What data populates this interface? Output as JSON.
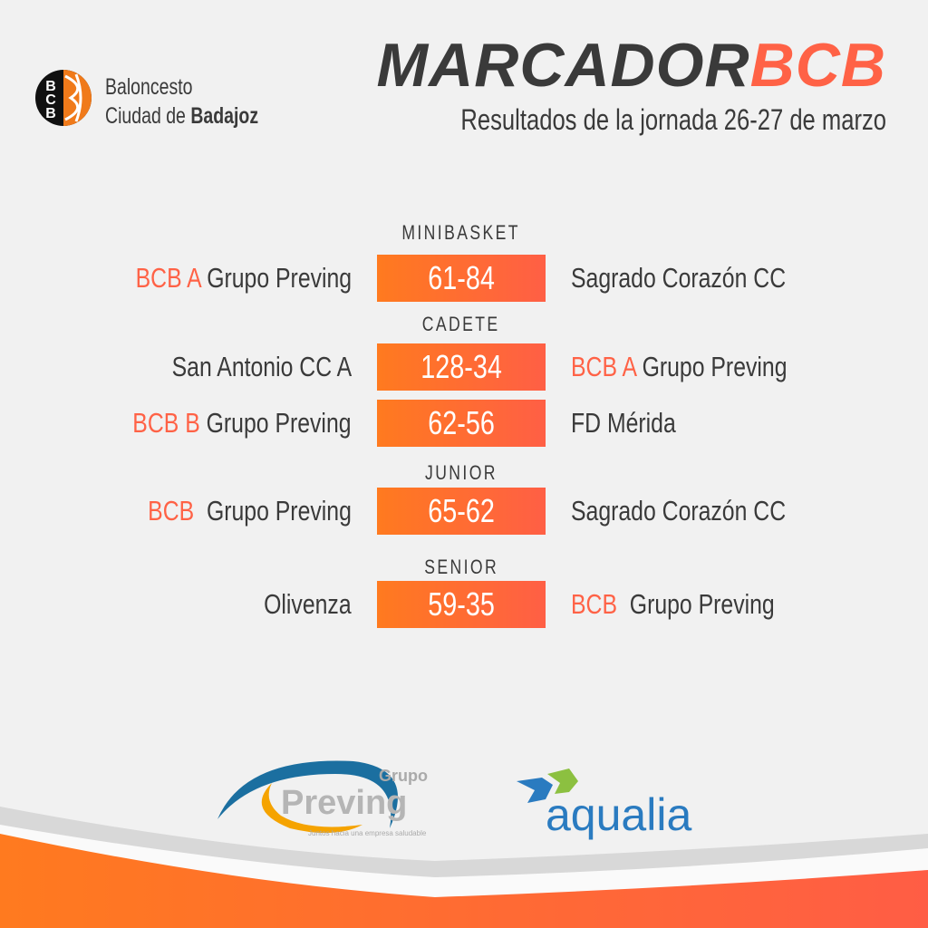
{
  "club": {
    "line1": "Baloncesto",
    "line2_prefix": "Ciudad de ",
    "line2_bold": "Badajoz",
    "logo_text": "BCB"
  },
  "header": {
    "title_main": "MARCADOR",
    "title_accent": "BCB",
    "subtitle": "Resultados de la jornada  26-27 de marzo"
  },
  "categories": [
    "MINIBASKET",
    "CADETE",
    "JUNIOR",
    "SENIOR"
  ],
  "games": [
    {
      "home_hl": "BCB A",
      "home": " Grupo Preving",
      "score": "61-84",
      "away_hl": "",
      "away": "Sagrado Corazón CC"
    },
    {
      "home_hl": "",
      "home": "San Antonio CC A",
      "score": "128-34",
      "away_hl": "BCB A",
      "away": " Grupo Preving"
    },
    {
      "home_hl": "BCB B",
      "home": " Grupo Preving",
      "score": "62-56",
      "away_hl": "",
      "away": "FD Mérida"
    },
    {
      "home_hl": "BCB",
      "home": "  Grupo Preving",
      "score": "65-62",
      "away_hl": "",
      "away": "Sagrado Corazón CC"
    },
    {
      "home_hl": "",
      "home": "Olivenza",
      "score": "59-35",
      "away_hl": "BCB",
      "away": "  Grupo Preving"
    }
  ],
  "sponsors": {
    "preving": {
      "top": "Grupo",
      "name": "Preving",
      "tagline": "Juntos hacia una empresa saludable"
    },
    "aqualia": {
      "name": "aqualia"
    }
  },
  "colors": {
    "accent": "#ff6246",
    "orange": "#ff7a1f",
    "text": "#3a3a3a"
  }
}
